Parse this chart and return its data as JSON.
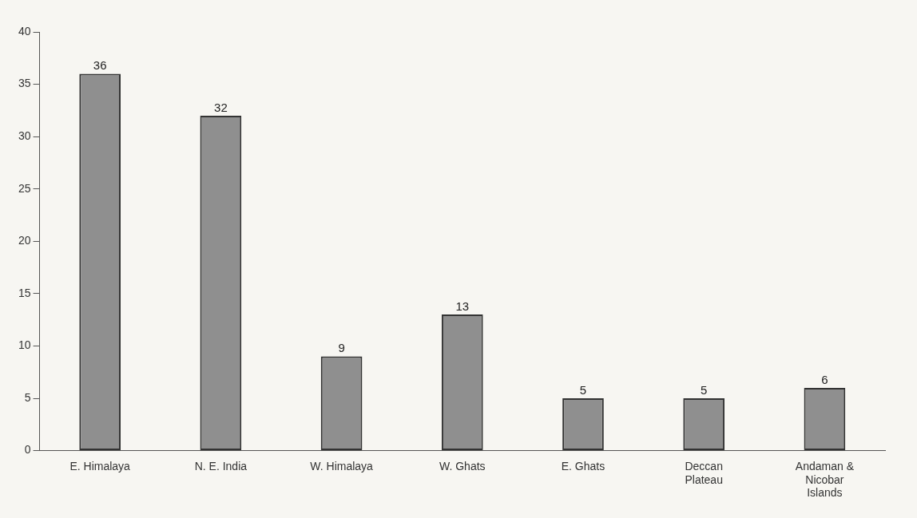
{
  "chart_data": {
    "type": "bar",
    "categories": [
      "E. Himalaya",
      "N. E. India",
      "W. Himalaya",
      "W. Ghats",
      "E. Ghats",
      "Deccan Plateau",
      "Andaman & Nicobar Islands"
    ],
    "values": [
      36,
      32,
      9,
      13,
      5,
      5,
      6
    ],
    "color": "#8f8f8f",
    "ylim": [
      0,
      40
    ],
    "yticks": [
      0,
      5,
      10,
      15,
      20,
      25,
      30,
      35,
      40
    ],
    "grid": false,
    "data_labels": true
  }
}
